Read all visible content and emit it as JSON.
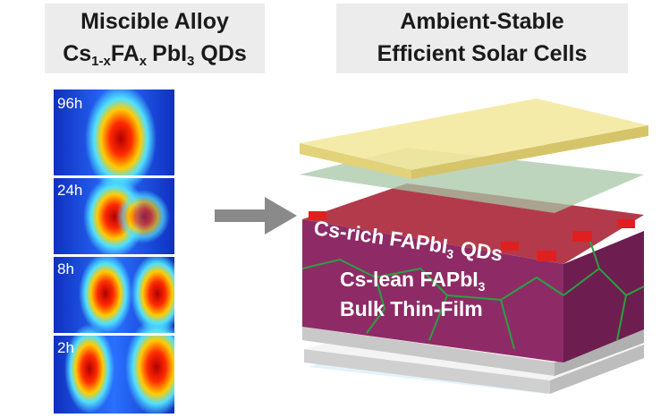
{
  "left_title": {
    "line1": "Miscible Alloy",
    "line2": [
      "Cs",
      "1-x",
      "FA",
      "x",
      "PbI",
      "3",
      "QDs"
    ]
  },
  "right_title": {
    "line1": "Ambient-Stable",
    "line2": "Efficient Solar Cells"
  },
  "heatmap": {
    "labels": [
      "96h",
      "24h",
      "8h",
      "2h"
    ]
  },
  "device": {
    "qd_label": [
      "Cs-rich FAPbI",
      "3",
      "QDs"
    ],
    "bulk_label": [
      "Cs-lean FAPbI",
      "3"
    ],
    "bulk_label2": "Bulk Thin-Film"
  }
}
